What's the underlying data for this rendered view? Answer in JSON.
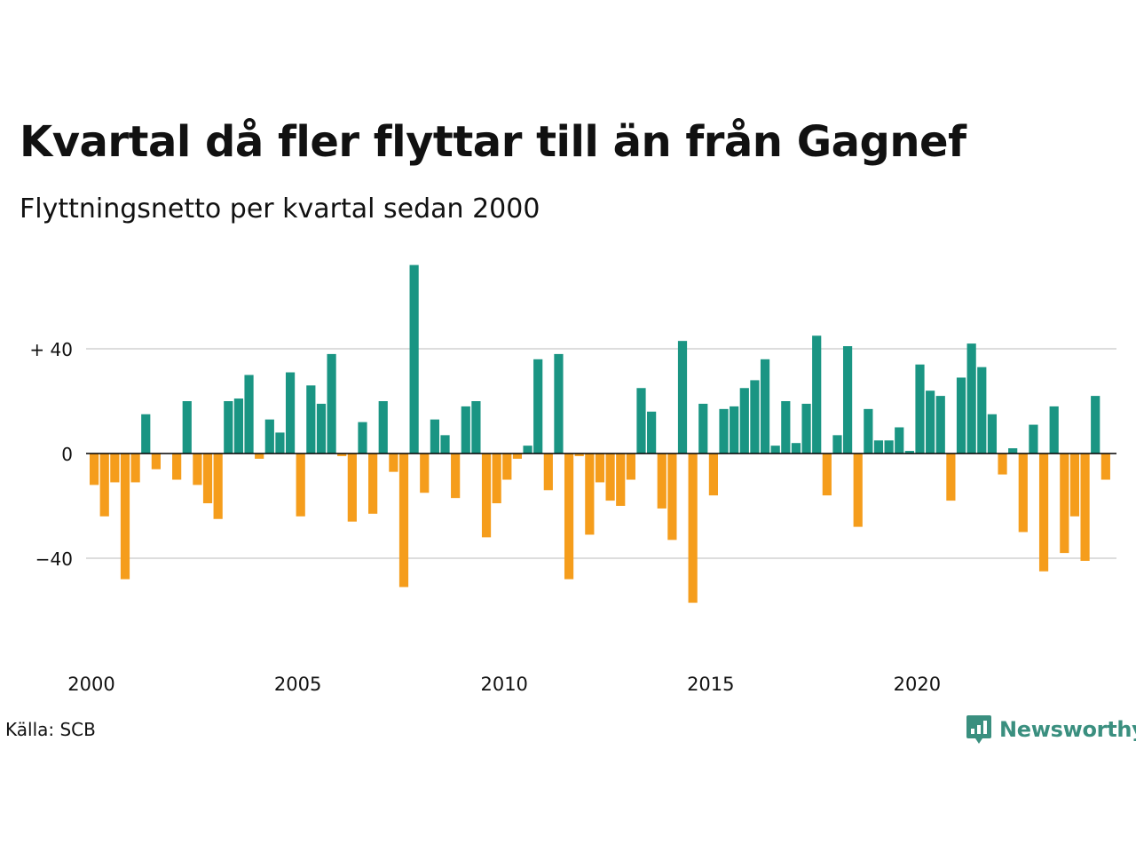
{
  "title": "Kvartal då fler flyttar till än från Gagnef",
  "subtitle": "Flyttningsnetto per kvartal sedan 2000",
  "source": "Källa: SCB",
  "brand": {
    "name": "Newsworthy",
    "icon": "newsworthy-logo-icon"
  },
  "colors": {
    "positive": "#1a9583",
    "negative": "#f59d1c",
    "grid": "#dddddd",
    "zero": "#000000",
    "brand": "#3a8f7f"
  },
  "chart_data": {
    "type": "bar",
    "title": "Kvartal då fler flyttar till än från Gagnef",
    "subtitle": "Flyttningsnetto per kvartal sedan 2000",
    "x_start_year": 2000,
    "x_ticks": [
      "2000",
      "2005",
      "2010",
      "2015",
      "2020"
    ],
    "y_ticks": [
      {
        "value": 40,
        "label": "+ 40"
      },
      {
        "value": 0,
        "label": "0"
      },
      {
        "value": -40,
        "label": "−40"
      }
    ],
    "ylim": [
      -64,
      72
    ],
    "grid": true,
    "legend": "none",
    "values": [
      -12,
      -24,
      -11,
      -48,
      -11,
      15,
      -6,
      0,
      -10,
      20,
      -12,
      -19,
      -25,
      20,
      21,
      30,
      -2,
      13,
      8,
      31,
      -24,
      26,
      19,
      38,
      -1,
      -26,
      12,
      -23,
      20,
      -7,
      -51,
      72,
      -15,
      13,
      7,
      -17,
      18,
      20,
      -32,
      -19,
      -10,
      -2,
      3,
      36,
      -14,
      38,
      -48,
      -1,
      -31,
      -11,
      -18,
      -20,
      -10,
      25,
      16,
      -21,
      -33,
      43,
      -57,
      19,
      -16,
      17,
      18,
      25,
      28,
      36,
      3,
      20,
      4,
      19,
      45,
      -16,
      7,
      41,
      -28,
      17,
      5,
      5,
      10,
      1,
      34,
      24,
      22,
      -18,
      29,
      42,
      33,
      15,
      -8,
      2,
      -30,
      11,
      -45,
      18,
      -38,
      -24,
      -41,
      22,
      -10
    ]
  }
}
